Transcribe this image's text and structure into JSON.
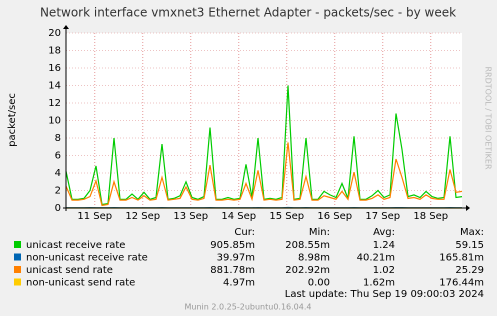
{
  "chart_data": {
    "type": "line",
    "title": "Network interface vmxnet3 Ethernet Adapter - packets/sec - by week",
    "y_label": "packet/sec",
    "side_label": "RRDTOOL / TOBI OETIKER",
    "xlim": [
      0,
      8.25
    ],
    "xticks": [
      {
        "value": 0.6,
        "label": "11 Sep"
      },
      {
        "value": 1.6,
        "label": "12 Sep"
      },
      {
        "value": 2.6,
        "label": "13 Sep"
      },
      {
        "value": 3.6,
        "label": "14 Sep"
      },
      {
        "value": 4.6,
        "label": "15 Sep"
      },
      {
        "value": 5.6,
        "label": "16 Sep"
      },
      {
        "value": 6.6,
        "label": "17 Sep"
      },
      {
        "value": 7.6,
        "label": "18 Sep"
      }
    ],
    "ylim": [
      0,
      20
    ],
    "yticks": [
      0,
      2,
      4,
      6,
      8,
      10,
      12,
      14,
      16,
      18,
      20
    ],
    "grid": true,
    "x": [
      0,
      0.125,
      0.25,
      0.375,
      0.5,
      0.625,
      0.75,
      0.875,
      1,
      1.125,
      1.25,
      1.375,
      1.5,
      1.625,
      1.75,
      1.875,
      2,
      2.125,
      2.25,
      2.375,
      2.5,
      2.625,
      2.75,
      2.875,
      3,
      3.125,
      3.25,
      3.375,
      3.5,
      3.625,
      3.75,
      3.875,
      4,
      4.125,
      4.25,
      4.375,
      4.5,
      4.625,
      4.75,
      4.875,
      5,
      5.125,
      5.25,
      5.375,
      5.5,
      5.625,
      5.75,
      5.875,
      6,
      6.125,
      6.25,
      6.375,
      6.5,
      6.625,
      6.75,
      6.875,
      7,
      7.125,
      7.25,
      7.375,
      7.5,
      7.625,
      7.75,
      7.875,
      8,
      8.125,
      8.25
    ],
    "stat_headers": [
      "Cur:",
      "Min:",
      "Avg:",
      "Max:"
    ],
    "series": [
      {
        "name": "unicast receive rate",
        "color": "#00cc00",
        "stats": [
          "905.85m",
          "208.55m",
          "1.24",
          "59.15"
        ],
        "values": [
          4.2,
          1.0,
          1.0,
          1.1,
          2.0,
          4.8,
          0.4,
          0.5,
          8.0,
          1.0,
          1.0,
          1.6,
          1.0,
          1.8,
          1.0,
          1.2,
          7.3,
          1.0,
          1.1,
          1.4,
          3.0,
          1.2,
          1.0,
          1.3,
          9.2,
          1.0,
          1.0,
          1.2,
          1.0,
          1.1,
          5.0,
          1.2,
          8.0,
          1.0,
          1.1,
          1.0,
          1.2,
          14.0,
          1.0,
          1.1,
          8.0,
          1.0,
          1.0,
          1.9,
          1.5,
          1.2,
          2.8,
          1.1,
          8.2,
          1.0,
          1.0,
          1.4,
          2.0,
          1.2,
          1.5,
          10.8,
          6.7,
          1.3,
          1.5,
          1.2,
          1.9,
          1.3,
          1.1,
          1.2,
          8.2,
          1.2,
          1.3
        ]
      },
      {
        "name": "non-unicast receive rate",
        "color": "#0066b3",
        "stats": [
          "39.97m",
          "8.98m",
          "40.21m",
          "165.81m"
        ],
        "values": [
          0.04,
          0.04,
          0.04,
          0.04,
          0.05,
          0.04,
          0.03,
          0.03,
          0.05,
          0.04,
          0.04,
          0.04,
          0.04,
          0.04,
          0.04,
          0.04,
          0.05,
          0.04,
          0.04,
          0.04,
          0.04,
          0.04,
          0.04,
          0.04,
          0.05,
          0.04,
          0.04,
          0.04,
          0.04,
          0.04,
          0.04,
          0.04,
          0.05,
          0.04,
          0.04,
          0.04,
          0.04,
          0.06,
          0.04,
          0.04,
          0.05,
          0.04,
          0.04,
          0.04,
          0.04,
          0.04,
          0.04,
          0.04,
          0.05,
          0.04,
          0.04,
          0.04,
          0.04,
          0.04,
          0.04,
          0.05,
          0.05,
          0.04,
          0.04,
          0.04,
          0.04,
          0.04,
          0.04,
          0.04,
          0.05,
          0.04,
          0.04
        ]
      },
      {
        "name": "unicast send rate",
        "color": "#ff8000",
        "stats": [
          "881.78m",
          "202.92m",
          "1.02",
          "25.29"
        ],
        "values": [
          2.5,
          0.9,
          0.9,
          1.0,
          1.3,
          3.1,
          0.3,
          0.4,
          3.0,
          0.9,
          0.9,
          1.2,
          0.9,
          1.4,
          0.9,
          1.0,
          3.5,
          0.9,
          1.0,
          1.1,
          2.4,
          1.0,
          0.9,
          1.1,
          4.9,
          0.9,
          0.9,
          1.0,
          0.9,
          1.0,
          2.8,
          1.0,
          4.3,
          0.9,
          1.0,
          0.9,
          1.0,
          7.5,
          0.9,
          1.0,
          3.6,
          0.9,
          0.9,
          1.4,
          1.2,
          1.0,
          1.9,
          1.0,
          4.1,
          0.9,
          0.9,
          1.1,
          1.5,
          1.0,
          1.2,
          5.6,
          3.5,
          1.1,
          1.2,
          1.0,
          1.5,
          1.1,
          1.0,
          1.0,
          4.4,
          1.8,
          1.9
        ]
      },
      {
        "name": "non-unicast send rate",
        "color": "#ffcc00",
        "stats": [
          "4.97m",
          "0.00",
          "1.62m",
          "176.44m"
        ],
        "values": [
          0.005,
          0.002,
          0.002,
          0.002,
          0.002,
          0.005,
          0,
          0,
          0.005,
          0.002,
          0.002,
          0.002,
          0.002,
          0.002,
          0.002,
          0.002,
          0.005,
          0.002,
          0.002,
          0.002,
          0.002,
          0.002,
          0.002,
          0.002,
          0.005,
          0.002,
          0.002,
          0.002,
          0.002,
          0.002,
          0.002,
          0.002,
          0.005,
          0.002,
          0.002,
          0.002,
          0.002,
          0.005,
          0.002,
          0.002,
          0.005,
          0.002,
          0.002,
          0.002,
          0.002,
          0.002,
          0.002,
          0.002,
          0.005,
          0.002,
          0.002,
          0.002,
          0.002,
          0.002,
          0.002,
          0.005,
          0.005,
          0.002,
          0.002,
          0.002,
          0.002,
          0.002,
          0.002,
          0.002,
          0.005,
          0.002,
          0.005
        ]
      }
    ],
    "last_update": "Last update:  Thu Sep 19 09:00:03 2024",
    "footer": "Munin 2.0.25-2ubuntu0.16.04.4"
  }
}
